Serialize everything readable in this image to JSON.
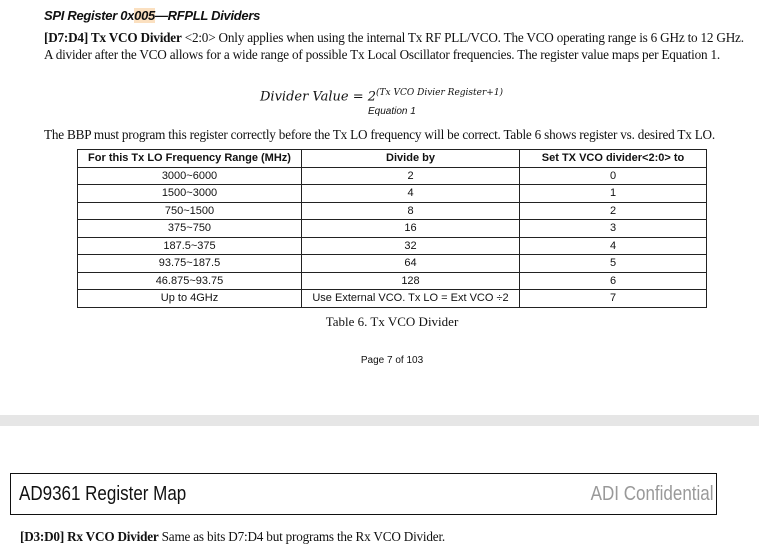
{
  "section": {
    "title_pre": "SPI Register 0x",
    "title_hl": "005",
    "title_post": "—RFPLL Dividers"
  },
  "para1": {
    "bold": "[D7:D4] Tx VCO Divider",
    "line1_rest": " <2:0> Only applies when using the internal Tx RF PLL/VCO.  The VCO operating range is 6 GHz to 12 GHz.",
    "line2": "A divider after the VCO allows for a wide range of possible Tx Local Oscillator frequencies.  The register value maps per Equation 1."
  },
  "equation": {
    "lhs": "Divider Value = 2",
    "exp": "(Tx VCO Divier Register+1)",
    "label": "Equation 1"
  },
  "para2": "The BBP must program this register correctly before the Tx LO frequency will be correct.  Table 6 shows register vs. desired Tx LO.",
  "table": {
    "headers": [
      "For this Tx LO Frequency Range (MHz)",
      "Divide by",
      "Set TX VCO divider<2:0> to"
    ],
    "rows": [
      [
        "3000~6000",
        "2",
        "0"
      ],
      [
        "1500~3000",
        "4",
        "1"
      ],
      [
        "750~1500",
        "8",
        "2"
      ],
      [
        "375~750",
        "16",
        "3"
      ],
      [
        "187.5~375",
        "32",
        "4"
      ],
      [
        "93.75~187.5",
        "64",
        "5"
      ],
      [
        "46.875~93.75",
        "128",
        "6"
      ],
      [
        "Up to 4GHz",
        "Use External VCO.  Tx LO = Ext VCO ÷2",
        "7"
      ]
    ],
    "caption": "Table 6. Tx VCO Divider"
  },
  "page_number": "Page 7 of 103",
  "next_page": {
    "header_title": "AD9361 Register Map",
    "header_right": "ADI Confidential",
    "para_bold": "[D3:D0] Rx VCO Divider",
    "para_rest": " Same as bits D7:D4 but programs the Rx VCO Divider."
  }
}
